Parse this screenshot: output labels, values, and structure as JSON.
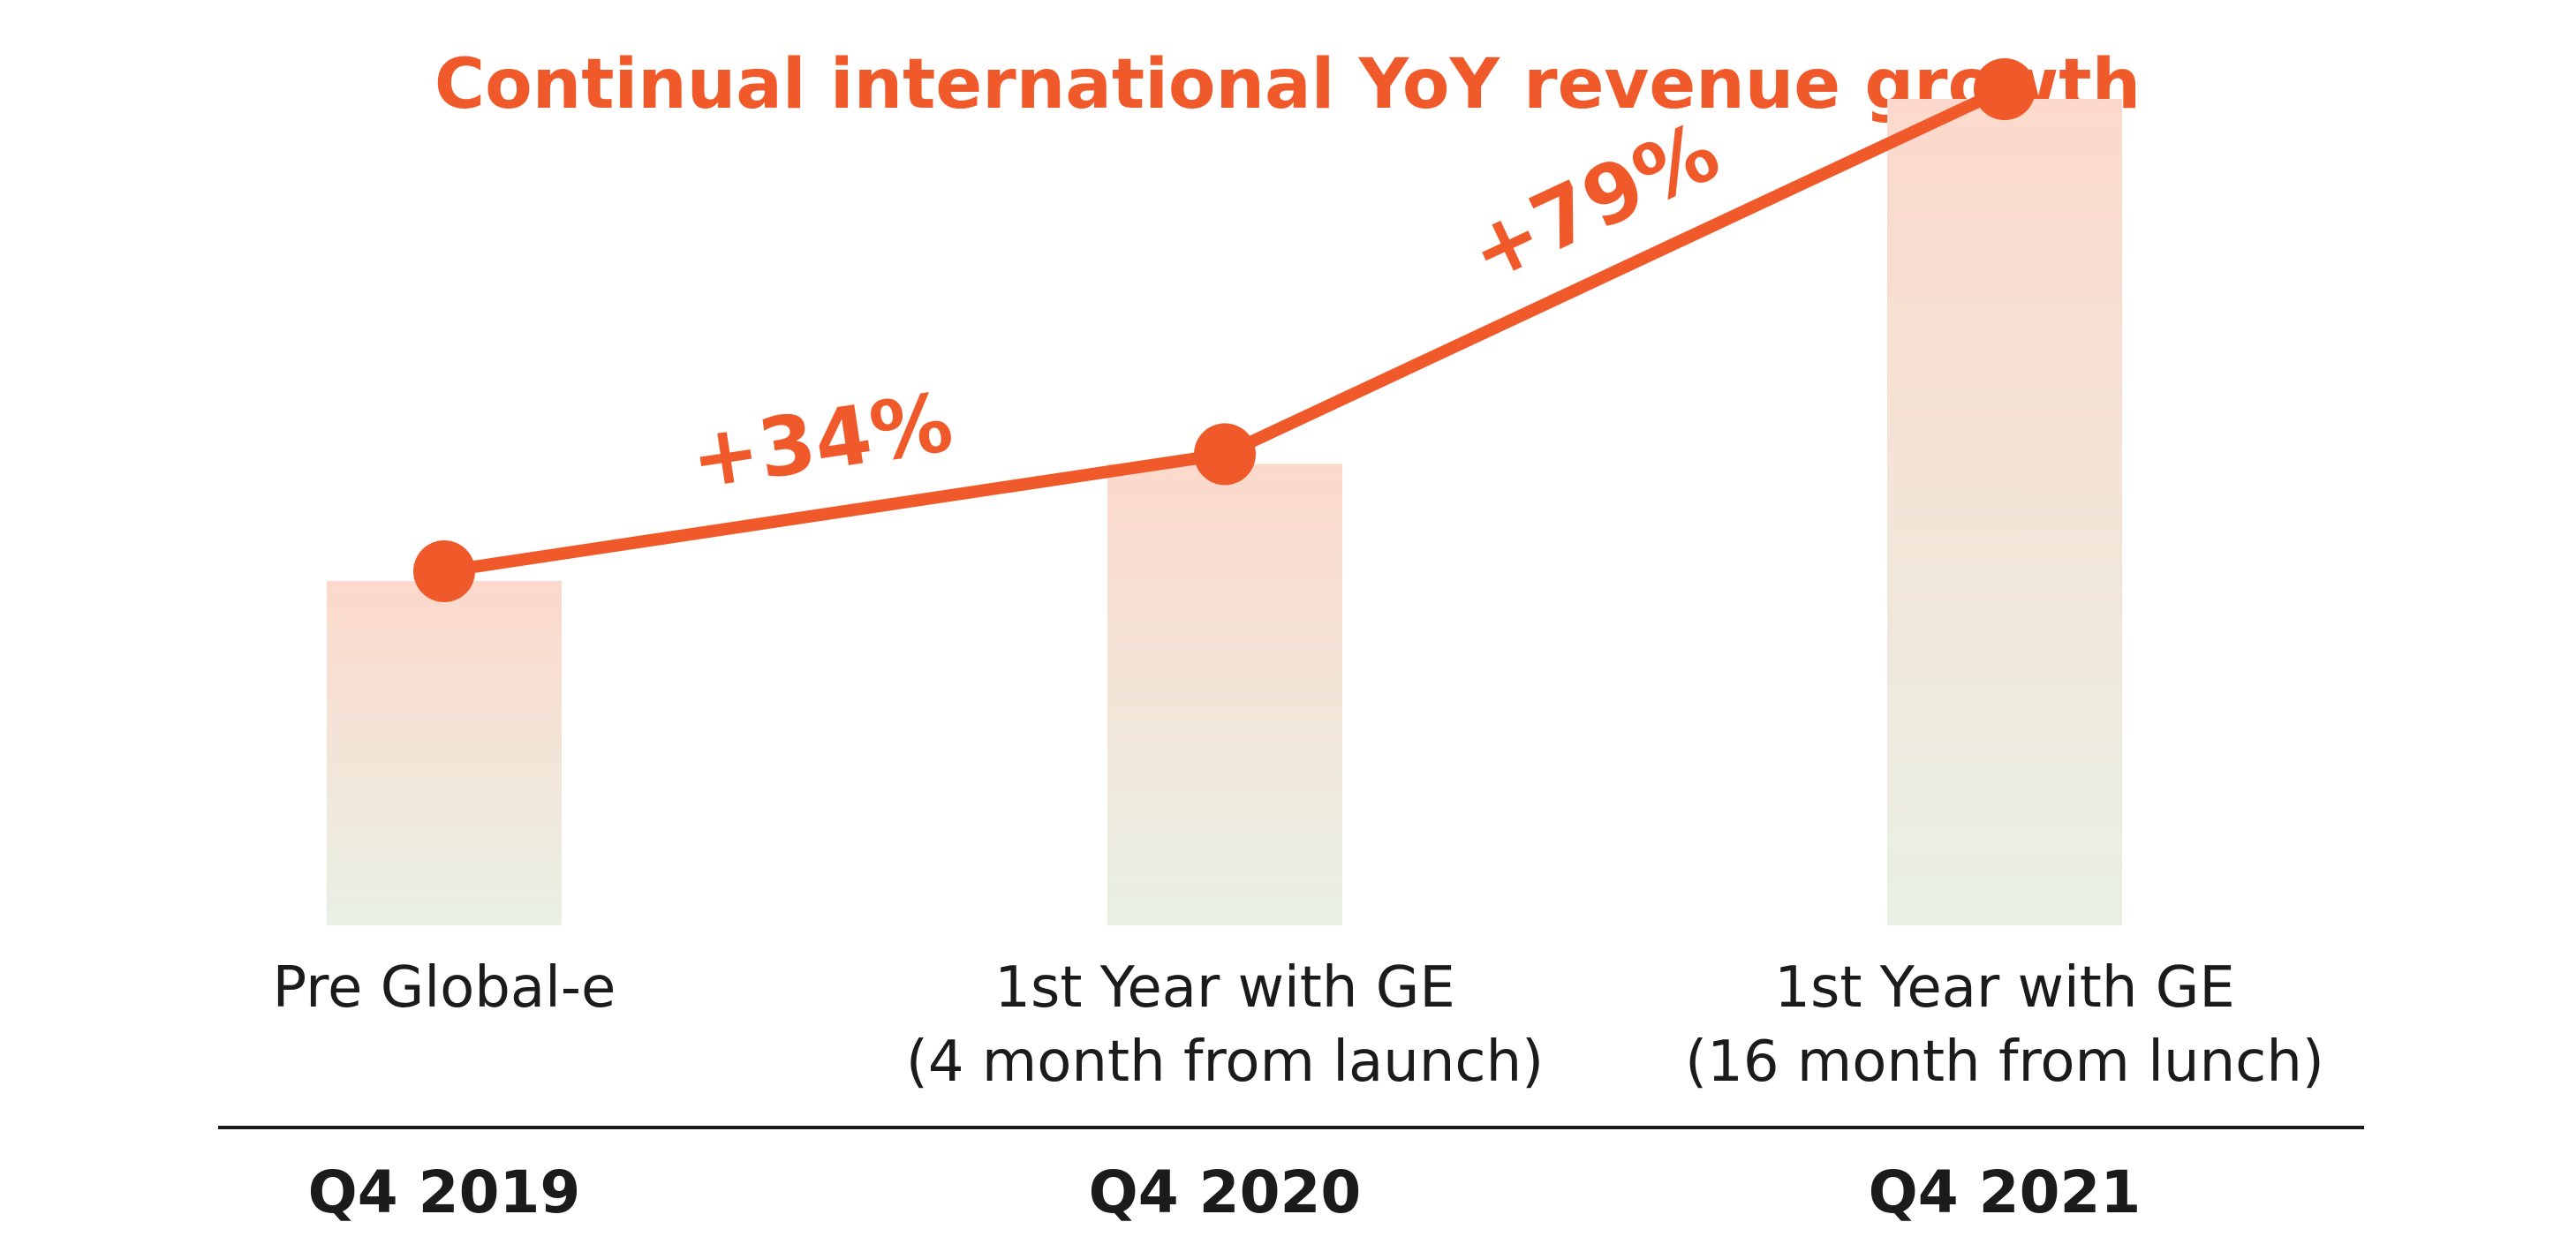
{
  "chart_data": {
    "type": "bar",
    "title": "Continual international YoY revenue growth",
    "categories": [
      [
        "Pre Global-e"
      ],
      [
        "1st Year with GE",
        "(4 month from launch)"
      ],
      [
        "1st Year with GE",
        "(16 month from lunch)"
      ]
    ],
    "periods": [
      "Q4 2019",
      "Q4 2020",
      "Q4 2021"
    ],
    "values": [
      100,
      134,
      240
    ],
    "growth_labels": [
      "+34%",
      "+79%"
    ],
    "xlabel": "",
    "ylabel": "",
    "grid": false,
    "legend": "none"
  },
  "colors": {
    "accent": "#f05a2a",
    "bar_top": "#fcd9cc",
    "bar_bottom": "#e9f0e4",
    "text": "#1b1b1b",
    "baseline": "#1b1b1b"
  }
}
